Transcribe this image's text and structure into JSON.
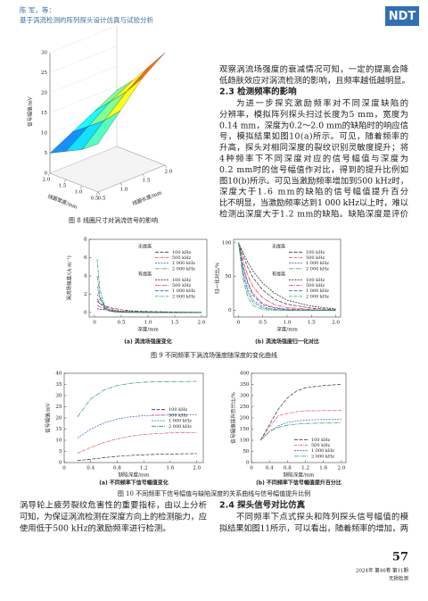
{
  "header": {
    "authors": "陈 军，等：",
    "title": "基于涡流检测的阵列探头设计仿真与试验分析",
    "logo": "NDT"
  },
  "text": {
    "right_top": [
      "观察涡流场强度的衰减情况可知，一定的提离会降",
      "低趋肤效应对涡流检测的影响，且频率越低越明显。"
    ],
    "section_2_3": {
      "heading": "2.3 检测频率的影响",
      "lines": [
        "为进一步探究激励频率对不同深度缺陷的",
        "分辨率，模拟阵列探头扫过长度为5 mm，宽度为",
        "0.14 mm，深度为0.2～2.0 mm的缺陷时的响应信",
        "号，模拟结果如图10(a)所示。可见，随着频率的",
        "升高，探头对相同深度的裂纹识别灵敏度提升；将",
        "4种频率下不同深度对应的信号幅值与深度为",
        "0.2 mm时的信号幅值作对比，得到的提升比例如",
        "图10(b)所示。可见当激励频率增加到500 kHz时，",
        "深度大于1.6 mm的缺陷的信号幅值提升百分",
        "比不明显，当激励频率达到1 000 kHz以上时，难以",
        "检测出深度大于1.2 mm的缺陷。缺陷深度是评价"
      ]
    },
    "bottom_left": [
      "涡导轮上疲劳裂纹危害性的重要指标，由以上分析",
      "可知，为保证涡流检测在深度方向上的检测能力，应",
      "使用低于500 kHz的激励频率进行检测。"
    ],
    "section_2_4": {
      "heading": "2.4 探头信号对比仿真",
      "lines": [
        "不同频率下点式探头和阵列探头信号幅值的模",
        "拟结果如图11所示，可以看出，随着频率的增加，两"
      ]
    }
  },
  "figure_captions": [
    "图 8 线圈尺寸对涡流信号的影响",
    "图 9 不同频率下涡流场强度随深度的变化曲线",
    "图 10 不同频率下信号幅值与缺陷深度的关系曲线与信号幅值提升比例"
  ],
  "footer": {
    "page": "57",
    "issue": "2024年 第46卷 第11期",
    "journal": "无损检测"
  },
  "chart_data": [
    {
      "type": "surface",
      "zlabel": "信号幅值/mV",
      "xlabel": "线圈宽度/mm",
      "ylabel": "线圈长度/mm",
      "colormap": "jet",
      "x": [
        0.5,
        1,
        1.5,
        2
      ],
      "y": [
        0.5,
        1,
        1.5,
        2
      ],
      "z": [
        [
          12,
          18,
          24,
          28
        ],
        [
          9,
          14,
          19,
          23
        ],
        [
          7,
          11,
          15,
          18
        ],
        [
          5,
          8,
          11,
          14
        ]
      ],
      "zlim": [
        0,
        30
      ],
      "zticks": [
        0,
        5,
        10,
        15,
        20,
        25,
        30
      ],
      "xticks": [
        0.5,
        {
          "value": 1,
          "label": "1.0"
        },
        1.5,
        {
          "value": 2,
          "label": "2.0"
        }
      ],
      "yticks": [
        0.5,
        {
          "value": 1,
          "label": "1.0"
        },
        1.5,
        {
          "value": 2,
          "label": "2.0"
        }
      ]
    },
    {
      "type": "line",
      "title": "(a) 涡流场强度变化",
      "xlabel": "深度/mm",
      "ylabel": "涡流场强度/(A·m⁻¹)",
      "legend": "upper right",
      "xlim": [
        -0.1,
        2.1
      ],
      "ylim": [
        -0.5,
        8
      ],
      "xticks": [
        0,
        0.5,
        {
          "value": 1,
          "label": "1.0"
        },
        1.5,
        {
          "value": 2,
          "label": "2.0"
        }
      ],
      "yticks": [
        0,
        2,
        4,
        6,
        8
      ],
      "x": [
        0.05,
        0.1,
        0.2,
        0.3,
        0.5,
        0.75,
        1,
        1.5,
        2
      ],
      "series_groups": [
        {
          "name": "无提离",
          "series": [
            {
              "name": "100 kHz",
              "color": "#333333",
              "values": [
                1.2,
                1,
                0.7,
                0.5,
                0.3,
                0.15,
                0.1,
                0.05,
                0.02
              ]
            },
            {
              "name": "500 kHz",
              "color": "#e0405a",
              "values": [
                2,
                1.4,
                0.7,
                0.35,
                0.1,
                0.03,
                0.01,
                0,
                0
              ]
            },
            {
              "name": "1 000 kHz",
              "color": "#3a5fcd",
              "values": [
                2.8,
                1.6,
                0.6,
                0.2,
                0.04,
                0.01,
                0,
                0,
                0
              ]
            },
            {
              "name": "2 000 kHz",
              "color": "#2a9a5a",
              "values": [
                4,
                1.8,
                0.4,
                0.1,
                0.01,
                0,
                0,
                0,
                0
              ]
            }
          ]
        },
        {
          "name": "有提离",
          "series": [
            {
              "name": "100 kHz",
              "color": "#333333",
              "values": [
                0.4,
                0.35,
                0.3,
                0.25,
                0.15,
                0.1,
                0.06,
                0.03,
                0.01
              ]
            },
            {
              "name": "500 kHz",
              "color": "#e0405a",
              "values": [
                0.8,
                0.6,
                0.35,
                0.2,
                0.08,
                0.03,
                0.01,
                0,
                0
              ]
            },
            {
              "name": "1 000 kHz",
              "color": "#3a5fcd",
              "values": [
                1.5,
                1,
                0.4,
                0.15,
                0.03,
                0.01,
                0,
                0,
                0
              ]
            },
            {
              "name": "2 000 kHz",
              "color": "#2a9a5a",
              "values": [
                5.8,
                2.5,
                0.5,
                0.1,
                0.01,
                0,
                0,
                0,
                0
              ]
            }
          ]
        }
      ]
    },
    {
      "type": "line",
      "title": "(b) 涡流场强度归一化对比",
      "xlabel": "深度/mm",
      "ylabel": "归一化对比/%",
      "legend": "upper right",
      "xlim": [
        -0.1,
        2.1
      ],
      "ylim": [
        -10,
        105
      ],
      "xticks": [
        0,
        0.5,
        {
          "value": 1,
          "label": "1.0"
        },
        1.5,
        {
          "value": 2,
          "label": "2.0"
        }
      ],
      "yticks": [
        0,
        50,
        100
      ],
      "x": [
        0,
        0.1,
        0.2,
        0.3,
        0.5,
        0.75,
        1,
        1.5,
        2
      ],
      "series_groups": [
        {
          "name": "无提离",
          "series": [
            {
              "name": "100 kHz",
              "color": "#333333",
              "values": [
                100,
                80,
                62,
                48,
                30,
                16,
                9,
                3,
                1
              ]
            },
            {
              "name": "500 kHz",
              "color": "#e0405a",
              "values": [
                100,
                65,
                40,
                25,
                10,
                4,
                2,
                0.5,
                0
              ]
            },
            {
              "name": "1 000 kHz",
              "color": "#3a5fcd",
              "values": [
                100,
                55,
                30,
                15,
                5,
                1,
                0.5,
                0,
                0
              ]
            },
            {
              "name": "2 000 kHz",
              "color": "#2a9a5a",
              "values": [
                100,
                45,
                18,
                7,
                1,
                0,
                0,
                0,
                0
              ]
            }
          ]
        },
        {
          "name": "有提离",
          "series": [
            {
              "name": "100 kHz",
              "color": "#333333",
              "values": [
                100,
                85,
                70,
                58,
                40,
                25,
                15,
                6,
                2
              ]
            },
            {
              "name": "500 kHz",
              "color": "#e0405a",
              "values": [
                100,
                72,
                50,
                35,
                18,
                8,
                4,
                1,
                0
              ]
            },
            {
              "name": "1 000 kHz",
              "color": "#3a5fcd",
              "values": [
                100,
                62,
                38,
                22,
                8,
                3,
                1,
                0,
                0
              ]
            },
            {
              "name": "2 000 kHz",
              "color": "#2a9a5a",
              "values": [
                100,
                52,
                25,
                12,
                3,
                1,
                0,
                0,
                0
              ]
            }
          ]
        }
      ]
    },
    {
      "type": "line",
      "title": "(a) 不同频率下信号幅值变化",
      "xlabel": "缺陷深度/mm",
      "ylabel": "信号幅值/mV",
      "legend": "center right",
      "xlim": [
        0,
        2.1
      ],
      "ylim": [
        0,
        40
      ],
      "xticks": [
        0,
        0.4,
        0.8,
        1.2,
        1.6,
        {
          "value": 2,
          "label": "2.0"
        }
      ],
      "yticks": [
        0,
        5,
        10,
        15,
        20,
        25,
        30,
        35,
        40
      ],
      "x": [
        0.2,
        0.4,
        0.6,
        0.8,
        1,
        1.2,
        1.4,
        1.6,
        1.8,
        2
      ],
      "series": [
        {
          "name": "100 kHz",
          "color": "#333333",
          "values": [
            0.9,
            1.5,
            2.2,
            2.8,
            3.2,
            3.5,
            3.7,
            3.85,
            3.95,
            4
          ]
        },
        {
          "name": "500 kHz",
          "color": "#e0405a",
          "values": [
            4.2,
            6.8,
            9,
            10.6,
            11.8,
            12.6,
            13,
            13.3,
            13.4,
            13.5
          ]
        },
        {
          "name": "1 000 kHz",
          "color": "#3a5fcd",
          "values": [
            11,
            15,
            17.8,
            19.5,
            20.5,
            21,
            21.2,
            21.3,
            21.4,
            21.4
          ]
        },
        {
          "name": "2 000 kHz",
          "color": "#2a9a5a",
          "values": [
            20.5,
            28.5,
            32.5,
            34.5,
            35.5,
            36,
            36.2,
            36.3,
            36.3,
            36.4
          ]
        }
      ]
    },
    {
      "type": "line",
      "title": "(b) 不同频率下信号幅值提升百分比",
      "xlabel": "缺陷深度/mm",
      "ylabel": "信号幅值提升百分比/%",
      "legend": "lower right",
      "xlim": [
        0,
        2.1
      ],
      "ylim": [
        0,
        400
      ],
      "xticks": [
        0,
        0.4,
        0.8,
        1.2,
        1.6,
        {
          "value": 2,
          "label": "2.0"
        }
      ],
      "yticks": [
        0,
        50,
        100,
        150,
        200,
        250,
        300,
        350,
        400
      ],
      "x": [
        0.2,
        0.4,
        0.6,
        0.8,
        1,
        1.2,
        1.4,
        1.6,
        1.8,
        2
      ],
      "series": [
        {
          "name": "100 kHz",
          "color": "#333333",
          "values": [
            100,
            170,
            240,
            290,
            320,
            335,
            340,
            345,
            348,
            350
          ]
        },
        {
          "name": "500 kHz",
          "color": "#e0405a",
          "values": [
            100,
            160,
            210,
            220,
            228,
            232,
            232,
            233,
            233,
            233
          ]
        },
        {
          "name": "1 000 kHz",
          "color": "#3a5fcd",
          "values": [
            100,
            140,
            165,
            180,
            186,
            190,
            192,
            193,
            193,
            194
          ]
        },
        {
          "name": "2 000 kHz",
          "color": "#2a9a5a",
          "values": [
            100,
            140,
            158,
            168,
            172,
            175,
            176,
            177,
            177,
            178
          ]
        }
      ]
    }
  ]
}
